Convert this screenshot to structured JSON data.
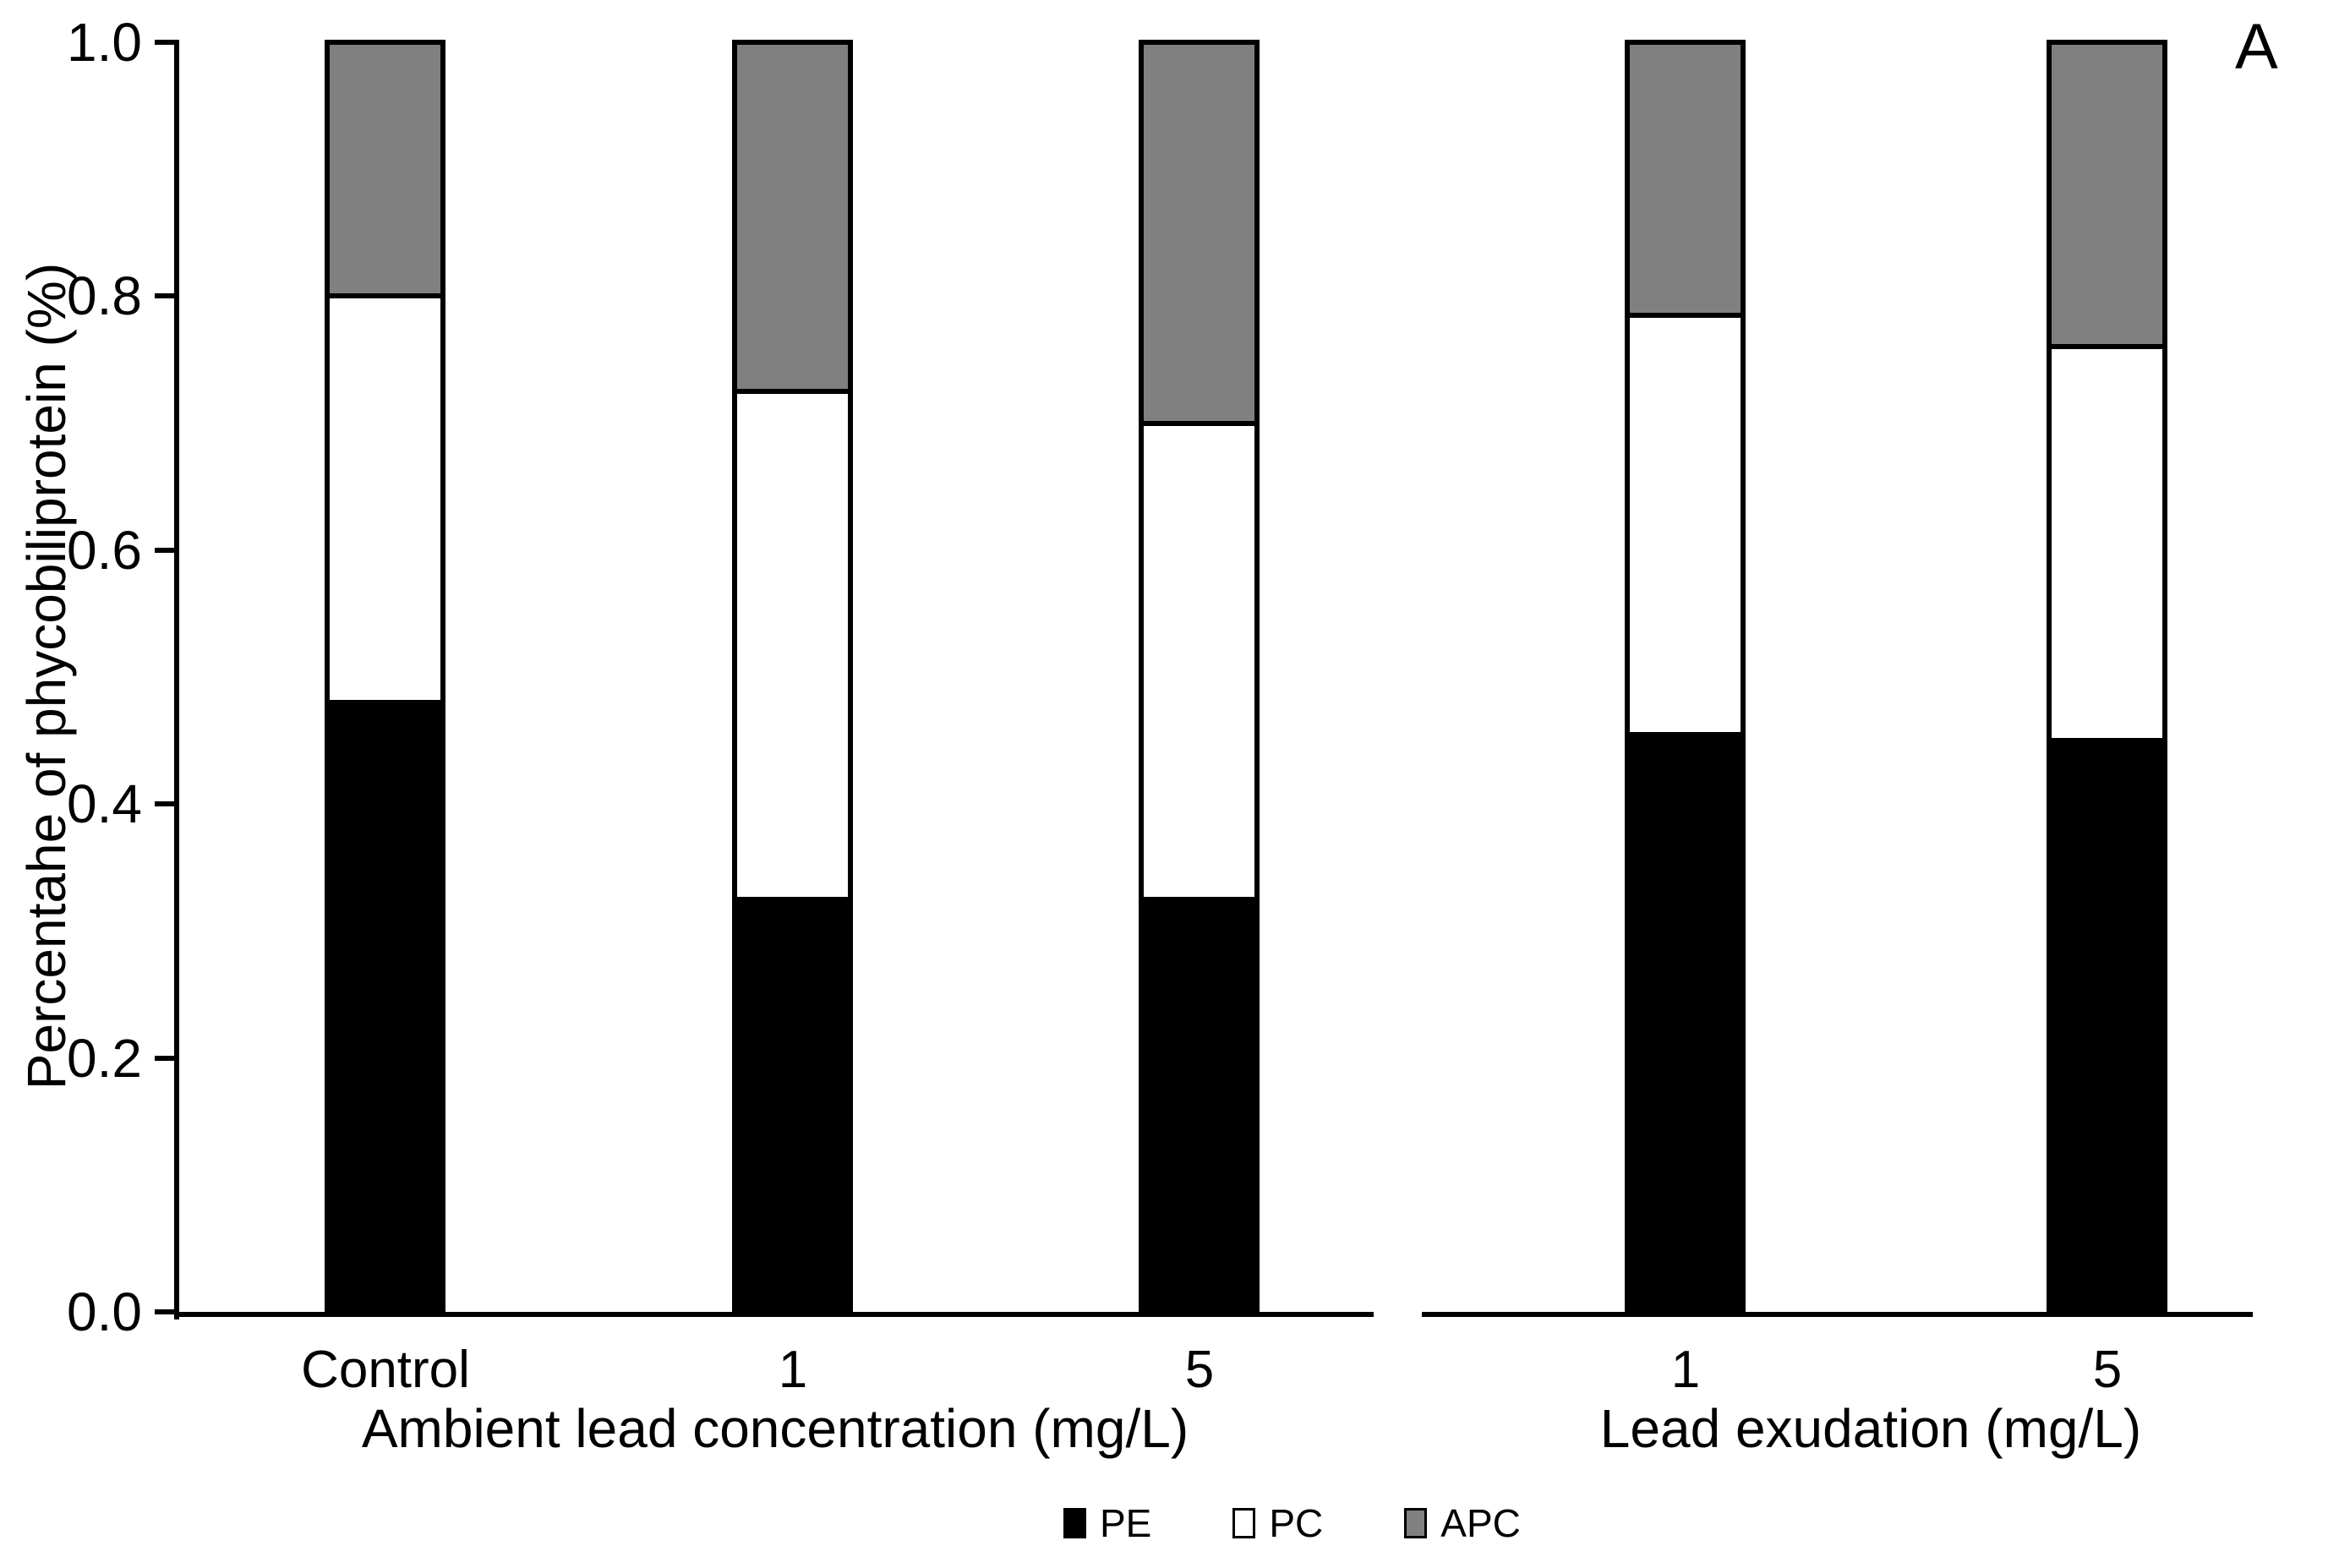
{
  "chart_data": {
    "type": "bar",
    "stacked": true,
    "title": "",
    "panel_label": "A",
    "ylabel": "Percentahe of phycobiliprotein (%)",
    "ylim": [
      0.0,
      1.0
    ],
    "yticks": [
      "0.0",
      "0.2",
      "0.4",
      "0.6",
      "0.8",
      "1.0"
    ],
    "grid": "off",
    "legend_position": "bottom",
    "series_colors": {
      "PE": "#000000",
      "PC": "#ffffff",
      "APC": "#808080"
    },
    "panels": [
      {
        "xlabel": "Ambient lead concentration (mg/L)",
        "categories": [
          "Control",
          "1",
          "5"
        ],
        "series": [
          {
            "name": "PE",
            "values": [
              0.48,
              0.325,
              0.325
            ]
          },
          {
            "name": "PC",
            "values": [
              0.32,
              0.4,
              0.375
            ]
          },
          {
            "name": "APC",
            "values": [
              0.2,
              0.275,
              0.3
            ]
          }
        ]
      },
      {
        "xlabel": "Lead exudation (mg/L)",
        "categories": [
          "1",
          "5"
        ],
        "series": [
          {
            "name": "PE",
            "values": [
              0.455,
              0.45
            ]
          },
          {
            "name": "PC",
            "values": [
              0.33,
              0.31
            ]
          },
          {
            "name": "APC",
            "values": [
              0.215,
              0.24
            ]
          }
        ]
      }
    ],
    "legend": [
      "PE",
      "PC",
      "APC"
    ]
  }
}
